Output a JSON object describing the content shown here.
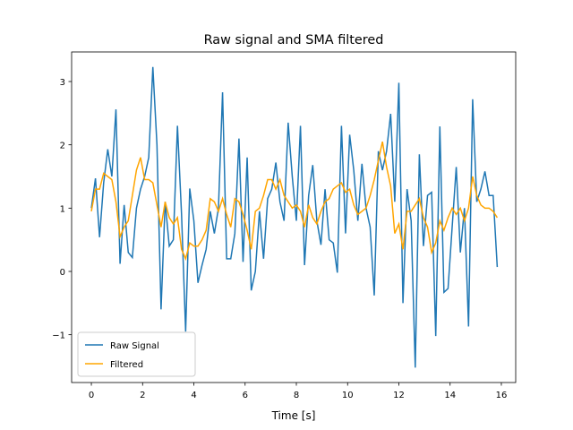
{
  "chart_data": {
    "type": "line",
    "title": "Raw signal and SMA filtered",
    "x_label": "Time [s]",
    "x": [
      0,
      0.16,
      0.32,
      0.48,
      0.64,
      0.8,
      0.96,
      1.12,
      1.28,
      1.44,
      1.6,
      1.76,
      1.92,
      2.08,
      2.24,
      2.4,
      2.56,
      2.72,
      2.88,
      3.04,
      3.2,
      3.36,
      3.52,
      3.68,
      3.84,
      4,
      4.16,
      4.32,
      4.48,
      4.64,
      4.8,
      4.96,
      5.12,
      5.28,
      5.44,
      5.6,
      5.76,
      5.92,
      6.08,
      6.24,
      6.4,
      6.56,
      6.72,
      6.88,
      7.04,
      7.2,
      7.36,
      7.52,
      7.68,
      7.84,
      8,
      8.16,
      8.32,
      8.48,
      8.64,
      8.8,
      8.96,
      9.12,
      9.28,
      9.44,
      9.6,
      9.76,
      9.92,
      10.08,
      10.24,
      10.4,
      10.56,
      10.72,
      10.88,
      11.04,
      11.2,
      11.36,
      11.52,
      11.68,
      11.84,
      12,
      12.16,
      12.32,
      12.48,
      12.64,
      12.8,
      12.96,
      13.12,
      13.28,
      13.44,
      13.6,
      13.76,
      13.92,
      14.08,
      14.24,
      14.4,
      14.56,
      14.72,
      14.88,
      15.04,
      15.2,
      15.36,
      15.52,
      15.68,
      15.84
    ],
    "series": [
      {
        "name": "Raw Signal",
        "color": "#1f77b4",
        "values": [
          1.0,
          1.47,
          0.54,
          1.4,
          1.93,
          1.5,
          2.56,
          0.12,
          1.05,
          0.3,
          0.22,
          1.0,
          1.3,
          1.5,
          1.8,
          3.23,
          2.0,
          -0.6,
          1.1,
          0.4,
          0.5,
          2.3,
          0.9,
          -0.95,
          1.31,
          0.8,
          -0.18,
          0.1,
          0.35,
          0.95,
          0.6,
          1.0,
          2.83,
          0.2,
          0.2,
          0.6,
          2.1,
          0.15,
          1.8,
          -0.3,
          0.0,
          0.95,
          0.2,
          1.15,
          1.3,
          1.72,
          1.1,
          0.8,
          2.35,
          1.5,
          0.8,
          2.3,
          0.1,
          1.2,
          1.68,
          0.8,
          0.42,
          1.3,
          0.5,
          0.45,
          -0.02,
          2.3,
          0.6,
          2.16,
          1.6,
          0.8,
          1.7,
          1.0,
          0.7,
          -0.38,
          1.9,
          1.6,
          1.9,
          2.49,
          1.1,
          2.98,
          -0.5,
          1.3,
          0.8,
          -1.52,
          1.85,
          0.4,
          1.2,
          1.25,
          -1.02,
          2.29,
          -0.33,
          -0.27,
          0.7,
          1.65,
          0.3,
          1.0,
          -0.87,
          2.72,
          1.1,
          1.3,
          1.58,
          1.2,
          1.2,
          0.07
        ]
      },
      {
        "name": "Filtered",
        "color": "#ffa500",
        "values": [
          0.95,
          1.3,
          1.3,
          1.55,
          1.5,
          1.45,
          1.1,
          0.55,
          0.7,
          0.8,
          1.2,
          1.6,
          1.8,
          1.45,
          1.45,
          1.4,
          1.05,
          0.7,
          1.1,
          0.85,
          0.75,
          0.85,
          0.35,
          0.2,
          0.45,
          0.4,
          0.4,
          0.5,
          0.65,
          1.15,
          1.1,
          0.95,
          1.15,
          0.9,
          0.7,
          1.15,
          1.1,
          0.9,
          0.65,
          0.35,
          0.95,
          1.0,
          1.2,
          1.45,
          1.45,
          1.3,
          1.45,
          1.2,
          1.1,
          1.0,
          1.05,
          0.95,
          0.7,
          1.05,
          0.85,
          0.75,
          0.95,
          1.1,
          1.15,
          1.3,
          1.35,
          1.4,
          1.25,
          1.3,
          1.05,
          0.9,
          0.95,
          1.0,
          1.2,
          1.45,
          1.75,
          2.05,
          1.65,
          1.35,
          0.6,
          0.75,
          0.35,
          0.95,
          0.95,
          1.05,
          1.15,
          0.85,
          0.7,
          0.3,
          0.45,
          0.8,
          0.65,
          0.85,
          1.0,
          0.9,
          1.0,
          0.8,
          1.0,
          1.5,
          1.2,
          1.05,
          1.0,
          1.0,
          0.95,
          0.85
        ]
      }
    ],
    "xlim": [
      -0.77,
      16.56
    ],
    "ylim": [
      -1.755,
      3.467
    ],
    "xticks": [
      0,
      2,
      4,
      6,
      8,
      10,
      12,
      14,
      16
    ],
    "yticks": [
      {
        "value": -1,
        "label": "−1"
      },
      0,
      1,
      2,
      3
    ],
    "legend": "lower left"
  }
}
